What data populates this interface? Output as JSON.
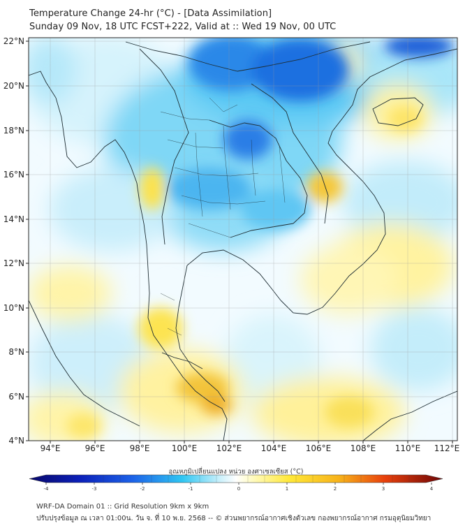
{
  "title_line1": "Temperature Change 24-hr (°C) - [Data Assimilation]",
  "title_line2": "Sunday 09 Nov, 18 UTC FCST+222, Valid at :: Wed 19 Nov, 00 UTC",
  "map": {
    "lon_ticks": [
      "94°E",
      "96°E",
      "98°E",
      "100°E",
      "102°E",
      "104°E",
      "106°E",
      "108°E",
      "110°E",
      "112°E"
    ],
    "lat_ticks": [
      "22°N",
      "20°N",
      "18°N",
      "16°N",
      "14°N",
      "12°N",
      "10°N",
      "8°N",
      "6°N",
      "4°N"
    ]
  },
  "colorbar": {
    "title": "อุณหภูมิเปลี่ยนแปลง หน่วย องศาเซลเซียส (°C)",
    "tick_labels": [
      "-4",
      "-3",
      "-2",
      "-1",
      "0",
      "1",
      "2",
      "3",
      "4"
    ],
    "colors": {
      "min": "#08086b",
      "low": "#1c4fd6",
      "mid_low": "#30c6f2",
      "zero": "#ffffff",
      "mid_high": "#ffe838",
      "high": "#f59a12",
      "max": "#6e0606"
    }
  },
  "footer_line1": "WRF-DA Domain 01 :: Grid Resolution 9km x 9km",
  "footer_line2": "ปรับปรุงข้อมูล ณ เวลา 01:00น. วัน จ. ที่ 10 พ.ย. 2568 -- © ส่วนพยากรณ์อากาศเชิงตัวเลข กองพยากรณ์อากาศ กรมอุตุนิยมวิทยา"
}
